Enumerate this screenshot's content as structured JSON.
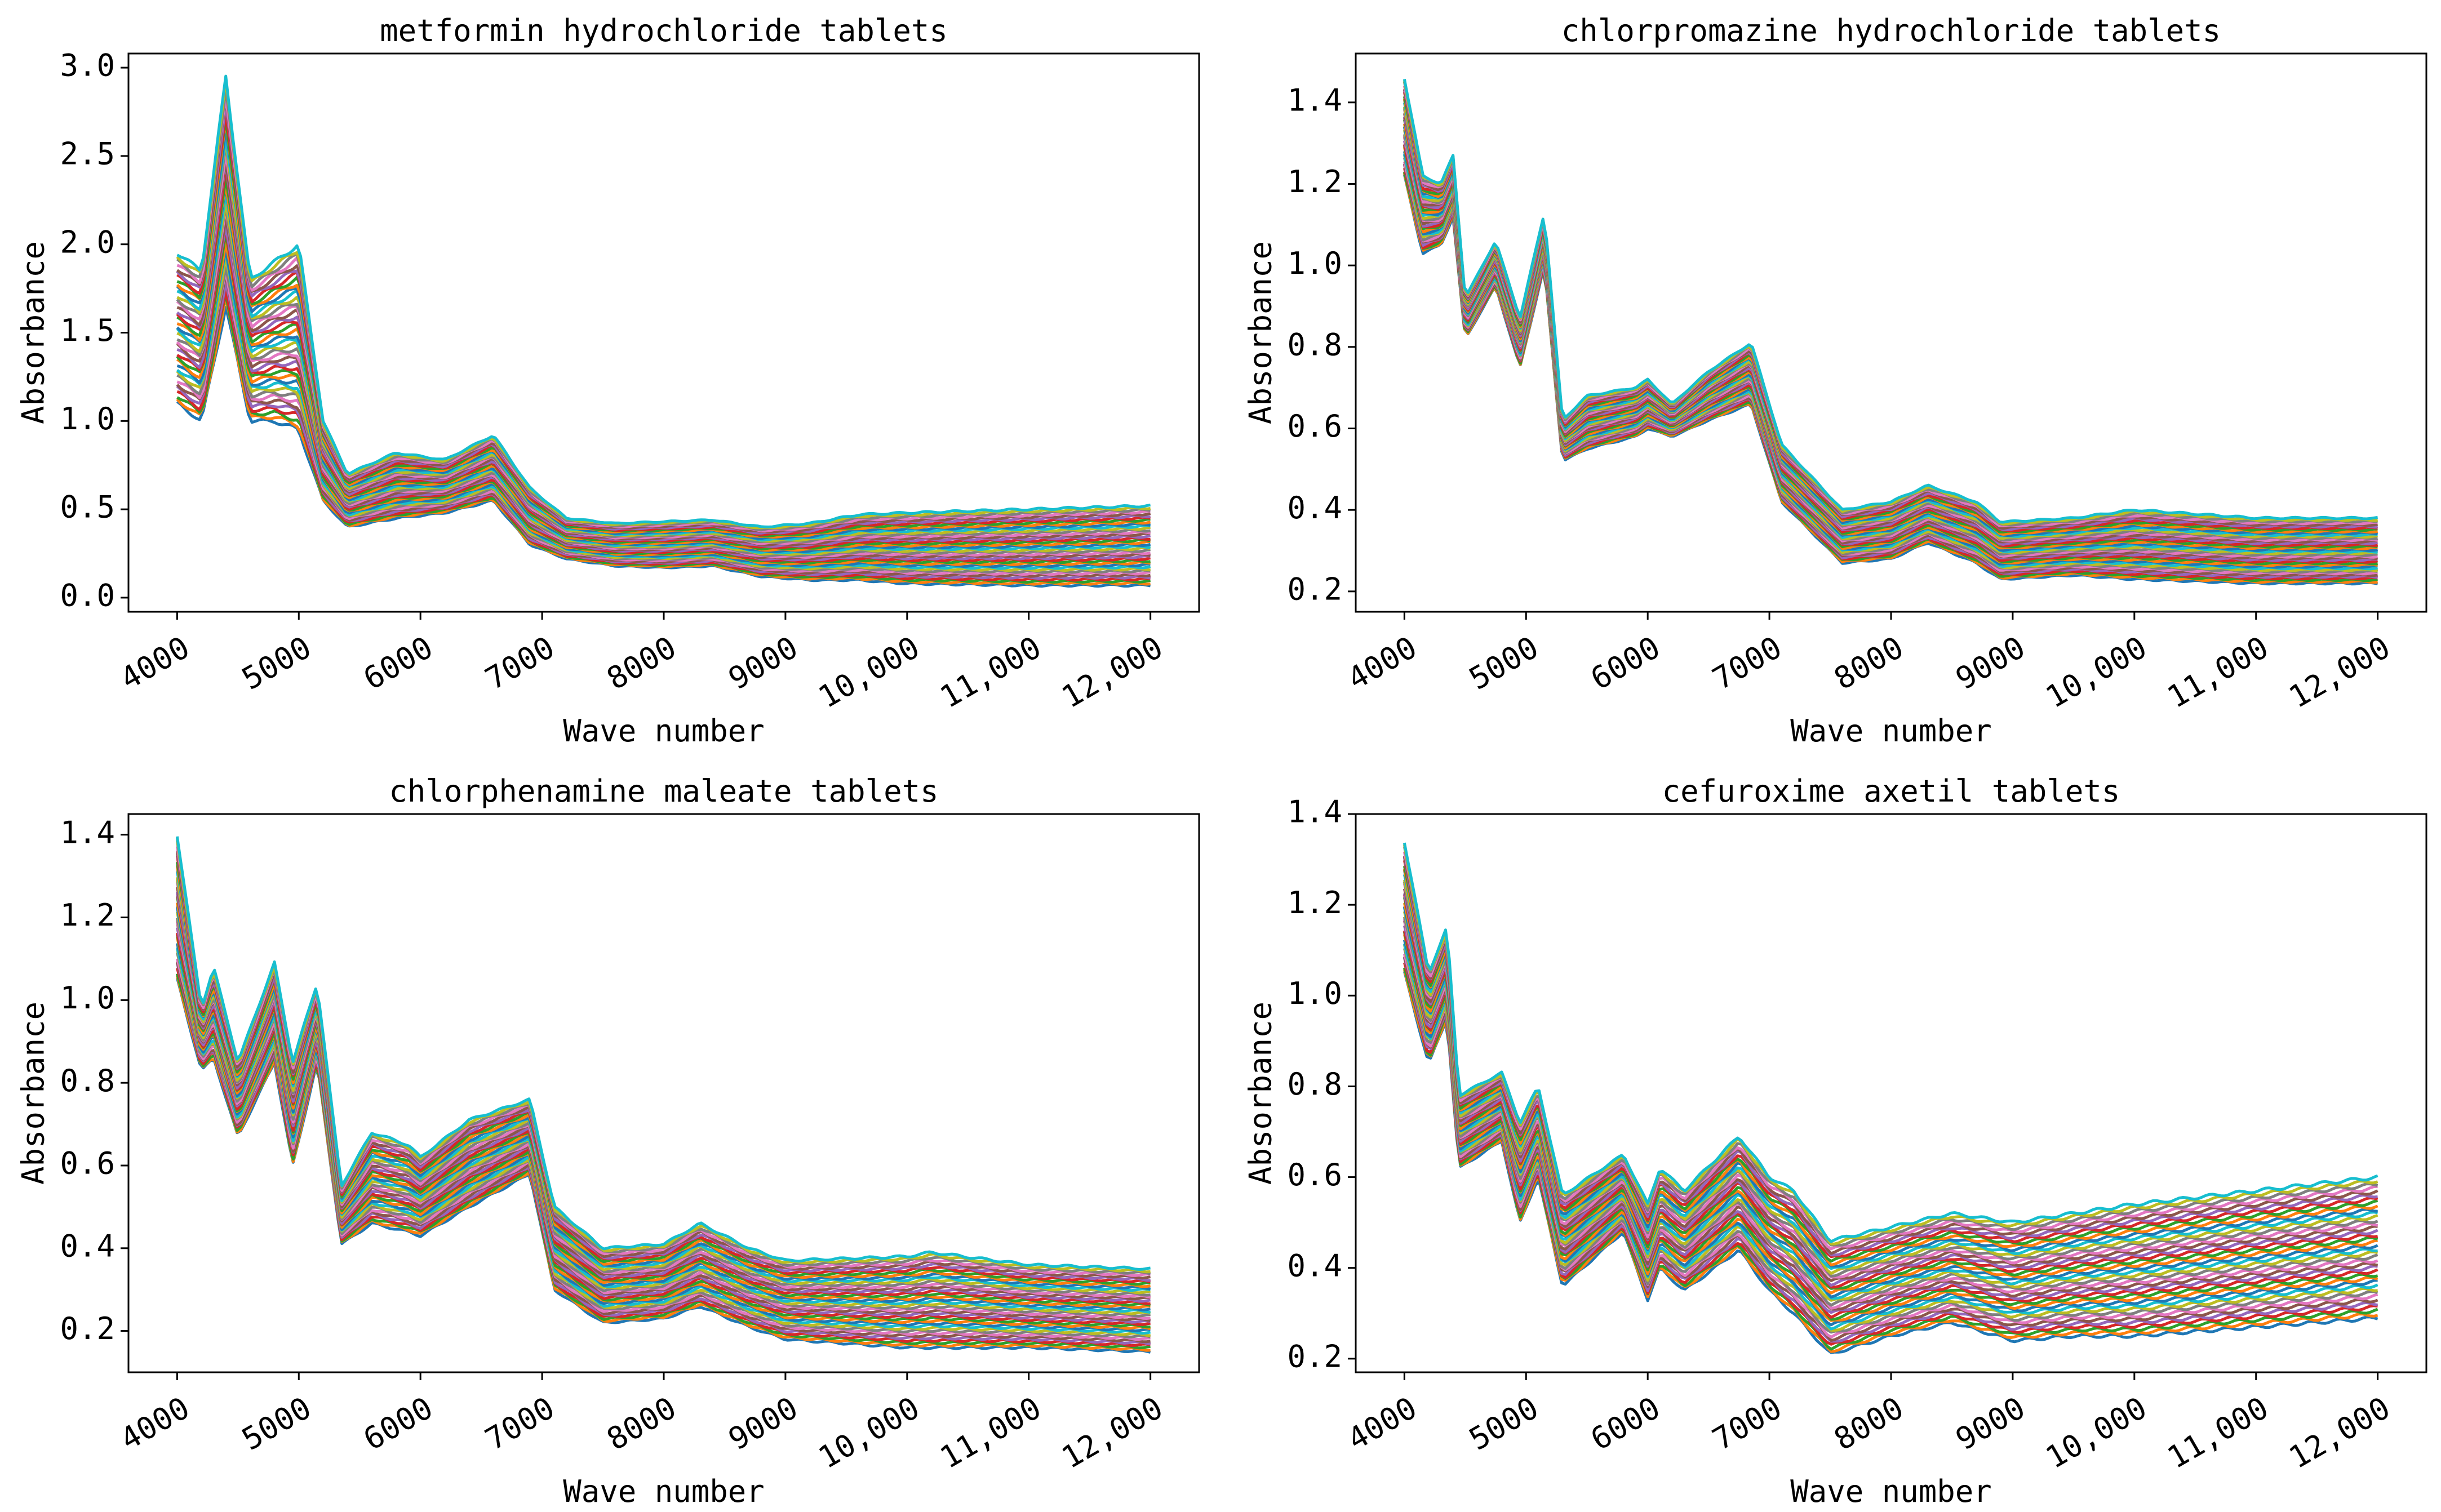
{
  "chart_data": [
    {
      "type": "line",
      "title": "metformin hydrochloride tablets",
      "xlabel": "Wave number",
      "ylabel": "Absorbance",
      "xlim": [
        3600,
        12400
      ],
      "ylim": [
        -0.08,
        3.08
      ],
      "x_ticks": [
        4000,
        5000,
        6000,
        7000,
        8000,
        9000,
        10000,
        11000,
        12000
      ],
      "x_tick_labels": [
        "4000",
        "5000",
        "6000",
        "7000",
        "8000",
        "9000",
        "10,000",
        "11,000",
        "12,000"
      ],
      "y_ticks": [
        0.0,
        0.5,
        1.0,
        1.5,
        2.0,
        2.5,
        3.0
      ],
      "y_tick_labels": [
        "0.0",
        "0.5",
        "1.0",
        "1.5",
        "2.0",
        "2.5",
        "3.0"
      ],
      "grid": false,
      "n_spectra": 40,
      "spectrum_range": {
        "x": [
          4000,
          4200,
          4400,
          4600,
          4800,
          5000,
          5200,
          5400,
          5800,
          6200,
          6600,
          6900,
          7200,
          7600,
          8000,
          8400,
          8800,
          9200,
          9600,
          10000,
          11000,
          12000
        ],
        "low": [
          1.1,
          1.0,
          1.65,
          1.0,
          1.0,
          0.95,
          0.55,
          0.4,
          0.45,
          0.48,
          0.55,
          0.3,
          0.22,
          0.18,
          0.17,
          0.18,
          0.12,
          0.1,
          0.1,
          0.08,
          0.07,
          0.07
        ],
        "high": [
          1.95,
          1.85,
          2.95,
          1.8,
          1.9,
          2.0,
          1.0,
          0.7,
          0.82,
          0.78,
          0.92,
          0.62,
          0.45,
          0.42,
          0.43,
          0.44,
          0.4,
          0.42,
          0.47,
          0.48,
          0.5,
          0.52
        ]
      }
    },
    {
      "type": "line",
      "title": "chlorpromazine hydrochloride tablets",
      "xlabel": "Wave number",
      "ylabel": "Absorbance",
      "xlim": [
        3600,
        12400
      ],
      "ylim": [
        0.15,
        1.52
      ],
      "x_ticks": [
        4000,
        5000,
        6000,
        7000,
        8000,
        9000,
        10000,
        11000,
        12000
      ],
      "x_tick_labels": [
        "4000",
        "5000",
        "6000",
        "7000",
        "8000",
        "9000",
        "10,000",
        "11,000",
        "12,000"
      ],
      "y_ticks": [
        0.2,
        0.4,
        0.6,
        0.8,
        1.0,
        1.2,
        1.4
      ],
      "y_tick_labels": [
        "0.2",
        "0.4",
        "0.6",
        "0.8",
        "1.0",
        "1.2",
        "1.4"
      ],
      "grid": false,
      "n_spectra": 40,
      "spectrum_range": {
        "x": [
          4000,
          4150,
          4300,
          4400,
          4500,
          4750,
          4950,
          5150,
          5300,
          5500,
          5900,
          6000,
          6200,
          6500,
          6850,
          7100,
          7600,
          8000,
          8300,
          8700,
          8900,
          9500,
          10000,
          11000,
          12000
        ],
        "low": [
          1.22,
          1.03,
          1.05,
          1.12,
          0.82,
          0.95,
          0.75,
          1.0,
          0.52,
          0.55,
          0.58,
          0.6,
          0.58,
          0.62,
          0.66,
          0.42,
          0.27,
          0.28,
          0.32,
          0.27,
          0.23,
          0.24,
          0.23,
          0.22,
          0.22
        ],
        "high": [
          1.46,
          1.22,
          1.2,
          1.27,
          0.92,
          1.06,
          0.87,
          1.13,
          0.62,
          0.68,
          0.7,
          0.72,
          0.66,
          0.74,
          0.81,
          0.56,
          0.4,
          0.42,
          0.46,
          0.42,
          0.37,
          0.38,
          0.4,
          0.38,
          0.38
        ]
      }
    },
    {
      "type": "line",
      "title": "chlorphenamine maleate tablets",
      "xlabel": "Wave number",
      "ylabel": "Absorbance",
      "xlim": [
        3600,
        12400
      ],
      "ylim": [
        0.1,
        1.45
      ],
      "x_ticks": [
        4000,
        5000,
        6000,
        7000,
        8000,
        9000,
        10000,
        11000,
        12000
      ],
      "x_tick_labels": [
        "4000",
        "5000",
        "6000",
        "7000",
        "8000",
        "9000",
        "10,000",
        "11,000",
        "12,000"
      ],
      "y_ticks": [
        0.2,
        0.4,
        0.6,
        0.8,
        1.0,
        1.2,
        1.4
      ],
      "y_tick_labels": [
        "0.2",
        "0.4",
        "0.6",
        "0.8",
        "1.0",
        "1.2",
        "1.4"
      ],
      "grid": false,
      "n_spectra": 40,
      "spectrum_range": {
        "x": [
          4000,
          4200,
          4300,
          4500,
          4800,
          4950,
          5150,
          5350,
          5600,
          5900,
          6000,
          6400,
          6900,
          7100,
          7500,
          8000,
          8300,
          8700,
          9000,
          10000,
          10200,
          11000,
          12000
        ],
        "low": [
          1.05,
          0.83,
          0.86,
          0.67,
          0.85,
          0.6,
          0.85,
          0.41,
          0.46,
          0.44,
          0.43,
          0.5,
          0.58,
          0.3,
          0.22,
          0.23,
          0.26,
          0.21,
          0.18,
          0.16,
          0.16,
          0.16,
          0.15
        ],
        "high": [
          1.4,
          0.98,
          1.08,
          0.85,
          1.09,
          0.85,
          1.04,
          0.55,
          0.68,
          0.65,
          0.62,
          0.71,
          0.76,
          0.5,
          0.4,
          0.41,
          0.46,
          0.4,
          0.37,
          0.38,
          0.39,
          0.36,
          0.35
        ]
      }
    },
    {
      "type": "line",
      "title": "cefuroxime axetil tablets",
      "xlabel": "Wave number",
      "ylabel": "Absorbance",
      "xlim": [
        3600,
        12400
      ],
      "ylim": [
        0.17,
        1.4
      ],
      "x_ticks": [
        4000,
        5000,
        6000,
        7000,
        8000,
        9000,
        10000,
        11000,
        12000
      ],
      "x_tick_labels": [
        "4000",
        "5000",
        "6000",
        "7000",
        "8000",
        "9000",
        "10,000",
        "11,000",
        "12,000"
      ],
      "y_ticks": [
        0.2,
        0.4,
        0.6,
        0.8,
        1.0,
        1.2,
        1.4
      ],
      "y_tick_labels": [
        "0.2",
        "0.4",
        "0.6",
        "0.8",
        "1.0",
        "1.2",
        "1.4"
      ],
      "grid": false,
      "n_spectra": 40,
      "spectrum_range": {
        "x": [
          4000,
          4200,
          4350,
          4450,
          4800,
          4950,
          5100,
          5300,
          5800,
          6000,
          6100,
          6300,
          6750,
          7000,
          7200,
          7500,
          8000,
          8500,
          9000,
          9500,
          10000,
          11000,
          12000
        ],
        "low": [
          1.05,
          0.85,
          0.95,
          0.62,
          0.68,
          0.5,
          0.6,
          0.36,
          0.48,
          0.33,
          0.4,
          0.35,
          0.44,
          0.35,
          0.3,
          0.21,
          0.25,
          0.28,
          0.24,
          0.25,
          0.25,
          0.27,
          0.29
        ],
        "high": [
          1.34,
          1.05,
          1.15,
          0.78,
          0.83,
          0.72,
          0.8,
          0.56,
          0.65,
          0.54,
          0.62,
          0.57,
          0.69,
          0.6,
          0.57,
          0.46,
          0.49,
          0.52,
          0.5,
          0.52,
          0.54,
          0.57,
          0.6
        ]
      }
    }
  ],
  "series_colors": [
    "#1f77b4",
    "#ff7f0e",
    "#2ca02c",
    "#d62728",
    "#9467bd",
    "#8c564b",
    "#e377c2",
    "#7f7f7f",
    "#bcbd22",
    "#17becf"
  ]
}
